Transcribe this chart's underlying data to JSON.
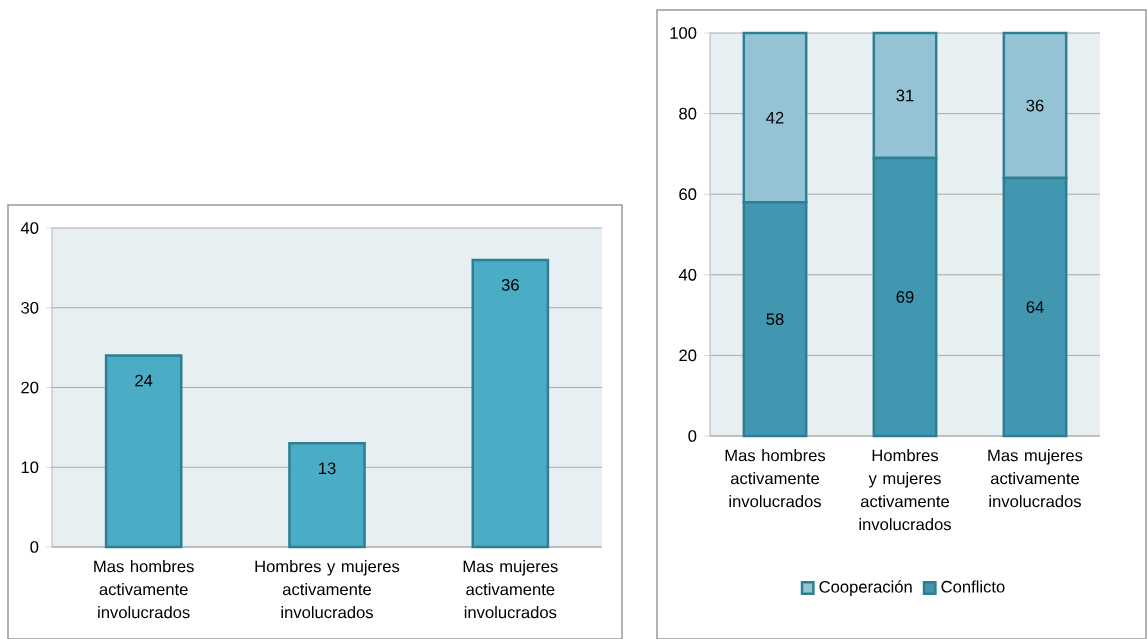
{
  "chart_data": [
    {
      "type": "bar",
      "categories": [
        "Mas hombres activamente involucrados",
        "Hombres y mujeres activamente involucrados",
        "Mas mujeres activamente involucrados"
      ],
      "values": [
        24,
        13,
        36
      ],
      "color": "#4bacc6",
      "ylim": [
        0,
        40
      ],
      "yticks": [
        0,
        10,
        20,
        30,
        40
      ],
      "grid": "y",
      "data_labels": true
    },
    {
      "type": "bar",
      "categories": [
        "Mas hombres activamente involucrados",
        "Hombres y mujeres activamente involucrados",
        "Mas mujeres activamente involucrados"
      ],
      "stacked": true,
      "series": [
        {
          "name": "Conflicto",
          "color": "#4197b0",
          "values": [
            58,
            69,
            64
          ]
        },
        {
          "name": "Cooperación",
          "color": "#93c3d5",
          "values": [
            42,
            31,
            36
          ]
        }
      ],
      "ylim": [
        0,
        100
      ],
      "yticks": [
        0,
        20,
        40,
        60,
        80,
        100
      ],
      "grid": "y",
      "legend": "bottom",
      "data_labels": true
    }
  ]
}
